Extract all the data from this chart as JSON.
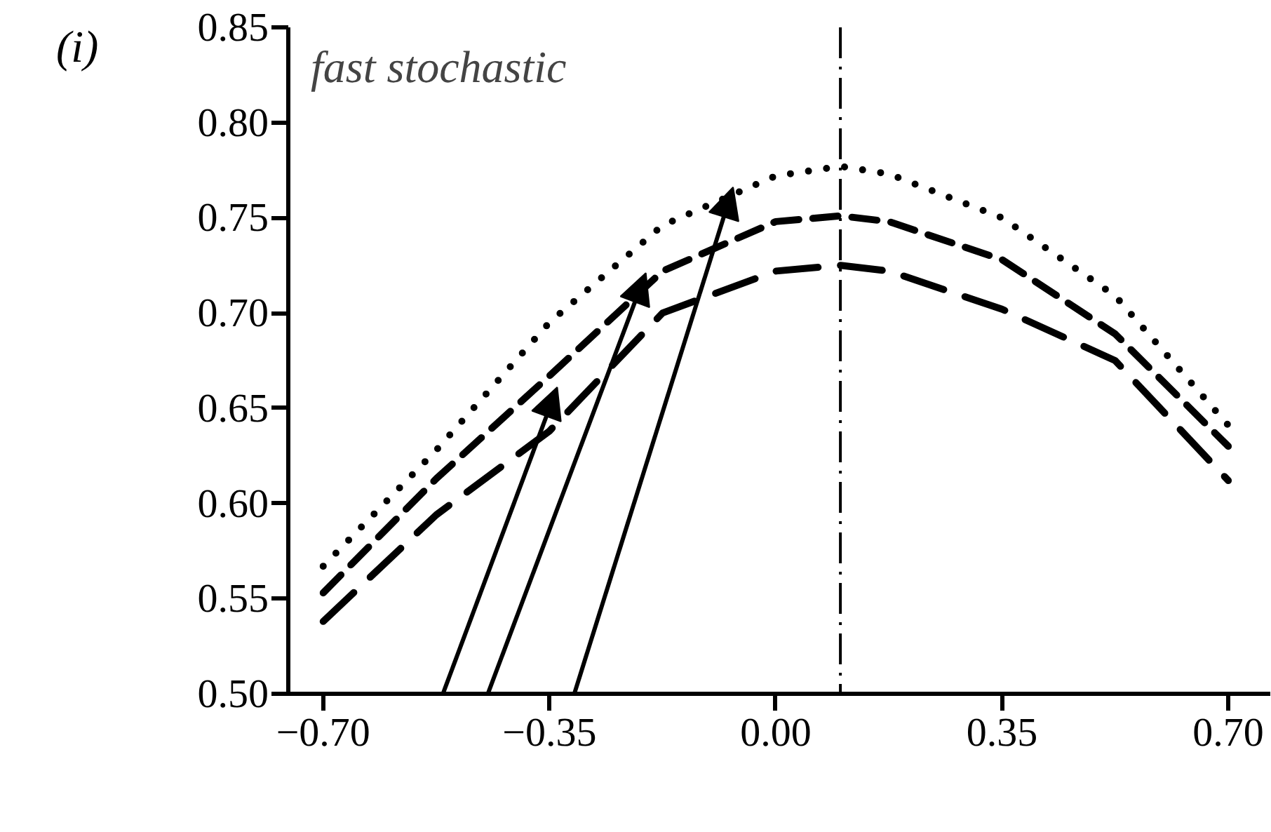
{
  "chart_data": {
    "type": "line",
    "title": "(i)",
    "annotations": [
      "fast stochastic"
    ],
    "x": [
      -0.7,
      -0.525,
      -0.35,
      -0.175,
      0,
      0.1,
      0.175,
      0.35,
      0.525,
      0.7
    ],
    "series": [
      {
        "color": "#000000",
        "line_style": "dotted",
        "values": [
          0.567,
          0.628,
          0.695,
          0.746,
          0.772,
          0.777,
          0.773,
          0.75,
          0.709,
          0.641
        ]
      },
      {
        "color": "#000000",
        "line_style": "dashed",
        "values": [
          0.553,
          0.613,
          0.667,
          0.722,
          0.748,
          0.751,
          0.748,
          0.728,
          0.689,
          0.63
        ]
      },
      {
        "color": "#000000",
        "line_style": "dashed",
        "values": [
          0.538,
          0.594,
          0.638,
          0.7,
          0.722,
          0.725,
          0.722,
          0.702,
          0.675,
          0.612
        ]
      }
    ],
    "xlim": [
      -0.754,
      0.765
    ],
    "ylim": [
      0.5,
      0.85
    ],
    "xticks": [
      {
        "value": -0.7,
        "label": "−0.70"
      },
      {
        "value": -0.35,
        "label": "−0.35"
      },
      "0.00",
      "0.35",
      "0.70"
    ],
    "yticks": [
      {
        "value": 0.5,
        "label": "0.50"
      },
      0.55,
      {
        "value": 0.6,
        "label": "0.60"
      },
      0.65,
      {
        "value": 0.7,
        "label": "0.70"
      },
      0.75,
      {
        "value": 0.8,
        "label": "0.80"
      },
      0.85
    ],
    "ref_lines": [
      {
        "axis": "x",
        "value": 0.1,
        "line_style": "dashdot",
        "color": "#000000"
      }
    ],
    "grid": false,
    "marker": "none"
  }
}
